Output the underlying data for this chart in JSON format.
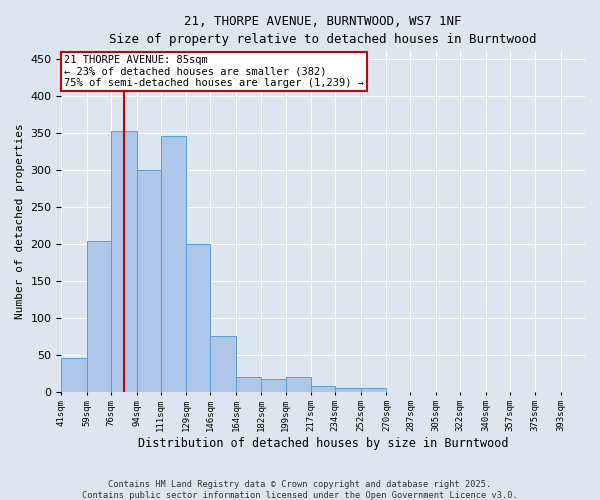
{
  "title1": "21, THORPE AVENUE, BURNTWOOD, WS7 1NF",
  "title2": "Size of property relative to detached houses in Burntwood",
  "xlabel": "Distribution of detached houses by size in Burntwood",
  "ylabel": "Number of detached properties",
  "bar_values": [
    45,
    204,
    352,
    300,
    345,
    200,
    75,
    20,
    17,
    20,
    8,
    5,
    5,
    0,
    0,
    0,
    0,
    0,
    0,
    0
  ],
  "bin_left_edges": [
    41,
    59,
    76,
    94,
    111,
    129,
    146,
    164,
    182,
    199,
    217,
    234,
    252,
    270,
    287,
    305,
    322,
    340,
    357,
    375
  ],
  "bin_labels": [
    "41sqm",
    "59sqm",
    "76sqm",
    "94sqm",
    "111sqm",
    "129sqm",
    "146sqm",
    "164sqm",
    "182sqm",
    "199sqm",
    "217sqm",
    "234sqm",
    "252sqm",
    "270sqm",
    "287sqm",
    "305sqm",
    "322sqm",
    "340sqm",
    "357sqm",
    "375sqm",
    "393sqm"
  ],
  "bin_width": 17,
  "bar_color": "#aec6e8",
  "bar_edge_color": "#5a9fd4",
  "property_size": 85,
  "vline_color": "#cc0000",
  "annotation_text": "21 THORPE AVENUE: 85sqm\n← 23% of detached houses are smaller (382)\n75% of semi-detached houses are larger (1,239) →",
  "annotation_box_color": "#ffffff",
  "annotation_box_edge": "#cc0000",
  "ylim": [
    0,
    460
  ],
  "yticks": [
    0,
    50,
    100,
    150,
    200,
    250,
    300,
    350,
    400,
    450
  ],
  "xlim_left": 41,
  "xlim_right": 410,
  "background_color": "#dde6f0",
  "grid_color": "#ffffff",
  "footer": "Contains HM Land Registry data © Crown copyright and database right 2025.\nContains public sector information licensed under the Open Government Licence v3.0."
}
